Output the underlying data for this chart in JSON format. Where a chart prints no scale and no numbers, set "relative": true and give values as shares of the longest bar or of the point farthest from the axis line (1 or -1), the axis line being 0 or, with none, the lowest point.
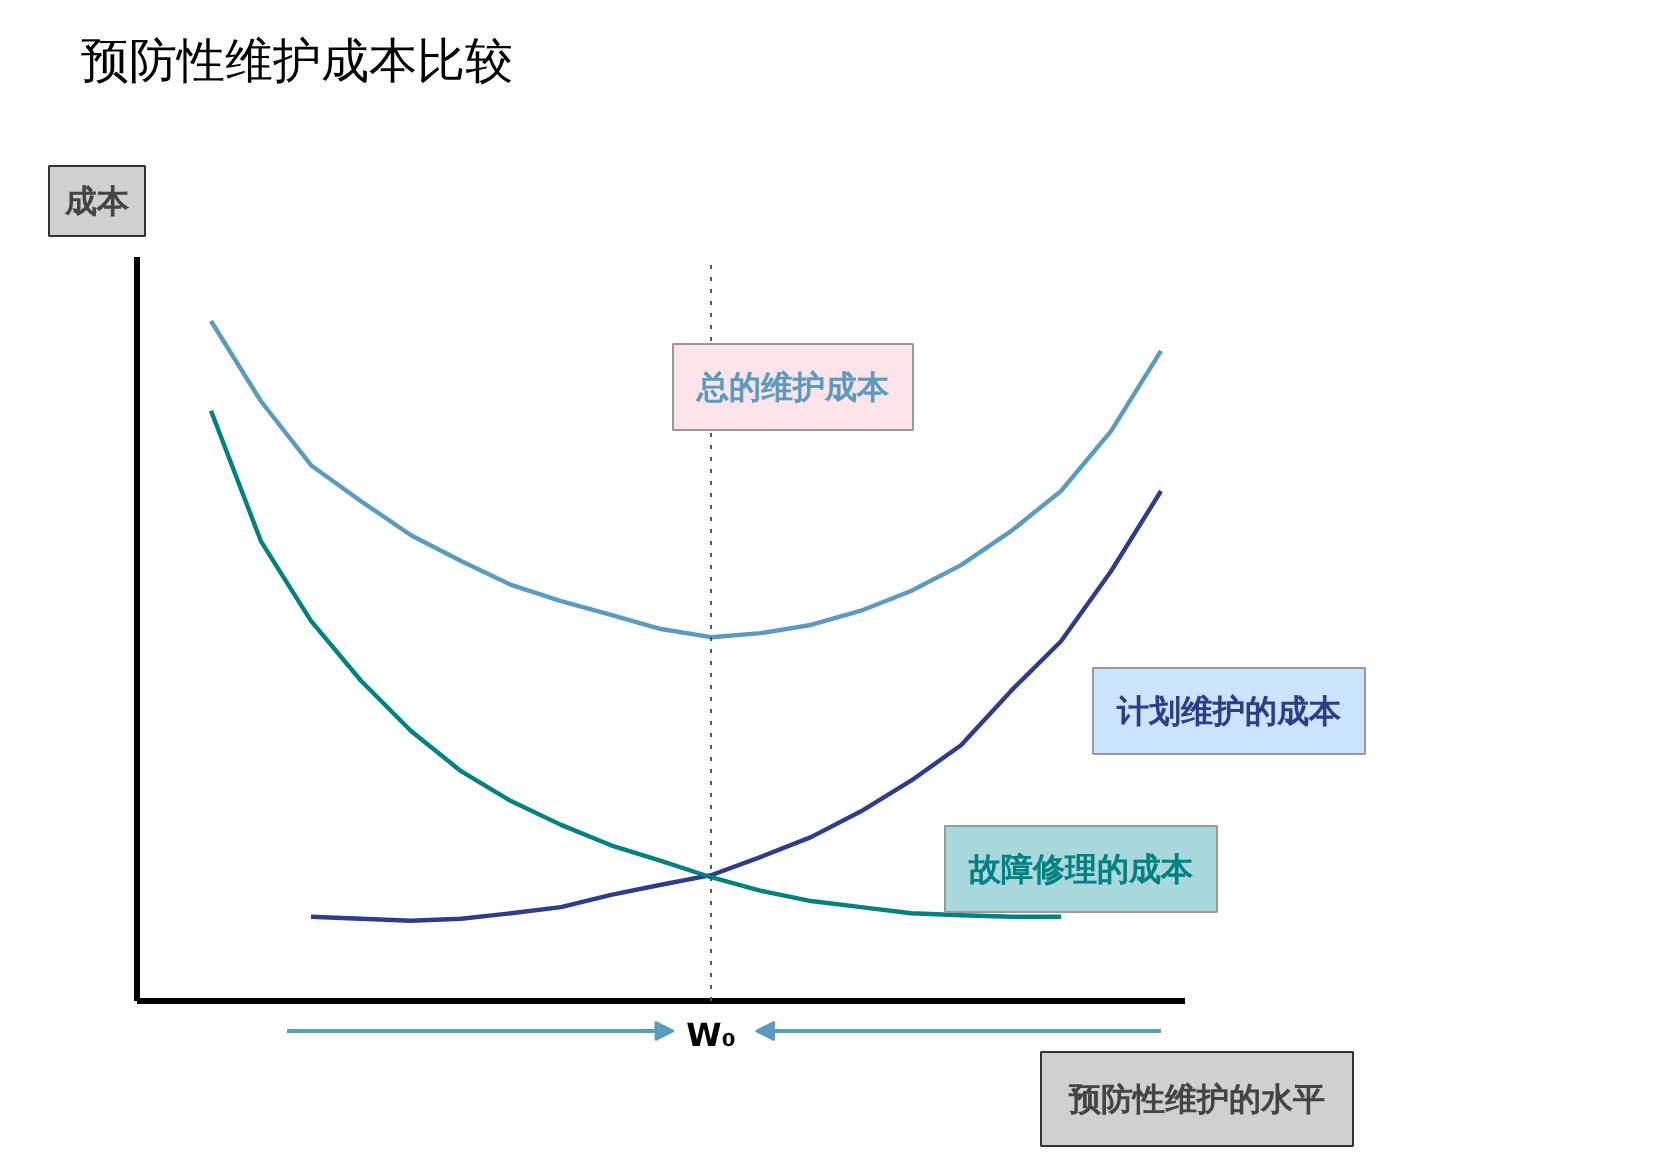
{
  "chart_data": {
    "type": "line",
    "relative": true,
    "title": "预防性维护成本比较",
    "xlabel": "预防性维护的水平",
    "ylabel": "成本",
    "marker": "none",
    "line_style": "solid",
    "categories": [
      null,
      null,
      null,
      null,
      null,
      null,
      null,
      null,
      null,
      null,
      null,
      null,
      null,
      null,
      null,
      null,
      null,
      null,
      null,
      null
    ],
    "annotations": [
      "W₀"
    ],
    "series": [
      {
        "name": "总的维护成本",
        "color": "#5b9bbd",
        "values": [
          1,
          0.882,
          0.788,
          0.735,
          0.685,
          0.647,
          0.612,
          0.588,
          0.568,
          0.547,
          0.535,
          0.541,
          0.553,
          0.574,
          0.603,
          0.641,
          0.691,
          0.75,
          0.838,
          0.956
        ]
      },
      {
        "name": "计划维护的成本",
        "color": "#2e3d8a",
        "values": [
          null,
          null,
          0.124,
          0.121,
          0.118,
          0.121,
          0.129,
          0.138,
          0.156,
          0.171,
          0.185,
          0.212,
          0.241,
          0.279,
          0.324,
          0.376,
          0.456,
          0.529,
          0.632,
          0.75
        ]
      },
      {
        "name": "故障修理的成本",
        "color": "#00807f",
        "values": [
          0.868,
          0.676,
          0.559,
          0.471,
          0.397,
          0.338,
          0.294,
          0.259,
          0.229,
          0.206,
          0.182,
          0.162,
          0.147,
          0.138,
          0.129,
          0.126,
          0.124,
          0.124,
          null,
          null
        ]
      }
    ]
  }
}
